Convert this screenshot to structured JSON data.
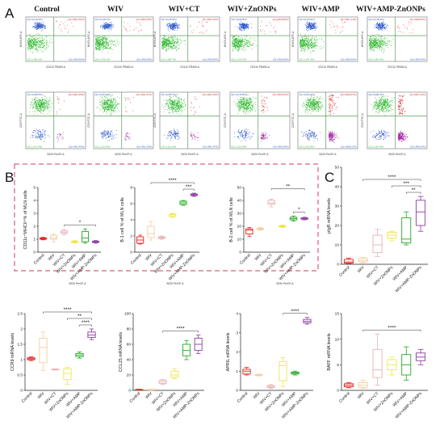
{
  "panels": {
    "A": "A",
    "B": "B",
    "C": "C"
  },
  "groups": [
    "Control",
    "WIV",
    "WIV+CT",
    "WIV+ZnONPs",
    "WIV+AMP",
    "WIV+AMP-ZnONPs"
  ],
  "row1_axes": {
    "x": "CD11C PB450-A",
    "y": "MHCII APC-A"
  },
  "row1_quads": [
    [
      "Q1-UL(16.4%)",
      "Q1-UR(1.50%)",
      "Q1-LL(82.1%)",
      "Q1-LR(0.00%)"
    ],
    [
      "Q1-UL(18.7%)",
      "Q1-UR(2.20%)",
      "Q1-LL(79.1%)",
      "Q1-LR(0.00%)"
    ],
    [
      "Q1-UL(15.9%)",
      "Q1-UR(1.42%)",
      "Q1-LL(82.7%)",
      "Q1-LR(0.00%)"
    ],
    [
      "Q1-UL(22.8%)",
      "Q1-UR(0.86%)",
      "Q1-LL(76.3%)",
      "Q1-LR(0.00%)"
    ],
    [
      "Q1-UL(19.6%)",
      "Q1-UR(1.14%)",
      "Q1-LL(79.3%)",
      "Q1-LR(0.00%)"
    ],
    [
      "Q1-UL(18.2%)",
      "Q1-UR(0.81%)",
      "Q1-LL(81.0%)",
      "Q1-LR(0.00%)"
    ]
  ],
  "row2_axes": {
    "x": "B220 PerCP-A",
    "y": "CD5 FITC-A"
  },
  "row2_quads": [
    [
      "Q1-UL(86.5%)",
      "Q1-UR(1.05%)",
      "Q1-LL(11.0%)",
      "Q1-LR(1.45%)"
    ],
    [
      "Q1-UL(84.1%)",
      "Q1-UR(1.97%)",
      "Q1-LL(12.6%)",
      "Q1-LR(1.33%)"
    ],
    [
      "Q1-UL(85.7%)",
      "Q1-UR(1.63%)",
      "Q1-LL(11.2%)",
      "Q1-LR(1.47%)"
    ],
    [
      "Q1-UL(76.8%)",
      "Q1-UR(4.52%)",
      "Q1-LL(13.6%)",
      "Q1-LR(5.08%)"
    ],
    [
      "Q1-UL(63.2%)",
      "Q1-UR(6.07%)",
      "Q1-LL(10.5%)",
      "Q1-LR(20.2%)"
    ],
    [
      "Q1-UL(62.1%)",
      "Q1-UR(7.11%)",
      "Q1-LL(10.9%)",
      "Q1-LR(19.9%)"
    ]
  ],
  "chart_data": [
    {
      "id": "b1",
      "type": "box",
      "ylabel": "CD11c⁺MHCII⁺% of MLN cells",
      "xlabel": "B220 PerCP-A",
      "ylim": [
        0,
        5
      ],
      "yticks": [
        0,
        1,
        2,
        3,
        4,
        5
      ],
      "categories": [
        "Control",
        "WIV",
        "WIV+CT",
        "WIV+ZnONPs",
        "WIV+AMP",
        "WIV+AMP-ZnONPs"
      ],
      "boxes": [
        [
          0.95,
          1.0,
          1.05,
          1.1,
          1.15
        ],
        [
          0.8,
          1.0,
          1.1,
          1.3,
          1.4
        ],
        [
          1.35,
          1.45,
          1.55,
          1.65,
          1.75
        ],
        [
          0.7,
          0.75,
          0.8,
          0.85,
          0.9
        ],
        [
          0.7,
          0.8,
          1.1,
          1.6,
          1.8
        ],
        [
          0.7,
          0.75,
          0.8,
          0.85,
          0.9
        ]
      ],
      "sig": [
        {
          "from": 2,
          "to": 5,
          "label": "*"
        }
      ]
    },
    {
      "id": "b2",
      "type": "box",
      "ylabel": "B-1 cell % of MLN cells",
      "xlabel": "B220 PerCP-A",
      "ylim": [
        0,
        8
      ],
      "yticks": [
        0,
        2,
        4,
        6,
        8
      ],
      "categories": [
        "Control",
        "WIV",
        "WIV+CT",
        "WIV+ZnONPs",
        "WIV+AMP",
        "WIV+AMP-ZnONPs"
      ],
      "boxes": [
        [
          1.0,
          1.1,
          1.5,
          1.9,
          2.1
        ],
        [
          1.5,
          1.8,
          2.3,
          3.2,
          3.8
        ],
        [
          1.6,
          1.7,
          1.8,
          1.9,
          2.0
        ],
        [
          4.3,
          4.4,
          4.6,
          4.7,
          4.8
        ],
        [
          5.8,
          5.9,
          6.1,
          6.3,
          6.4
        ],
        [
          6.9,
          7.0,
          7.1,
          7.2,
          7.3
        ]
      ],
      "sig": [
        {
          "from": 4,
          "to": 5,
          "label": "***"
        },
        {
          "from": 1,
          "to": 5,
          "label": "****"
        }
      ]
    },
    {
      "id": "b3",
      "type": "box",
      "ylabel": "B-2 cell % of MLN cells",
      "xlabel": "B220 PerCP-A",
      "ylim": [
        0,
        50
      ],
      "yticks": [
        0,
        10,
        20,
        30,
        40,
        50
      ],
      "categories": [
        "Control",
        "WIV",
        "WIV+CT",
        "WIV+ZnONPs",
        "WIV+AMP",
        "WIV+AMP-ZnONPs"
      ],
      "boxes": [
        [
          12,
          14,
          17,
          18,
          19
        ],
        [
          17,
          17.5,
          18,
          18.5,
          19
        ],
        [
          35,
          37,
          38,
          40,
          41
        ],
        [
          19,
          19.5,
          20,
          20.5,
          21
        ],
        [
          24,
          25,
          26,
          27,
          28
        ],
        [
          25,
          25.5,
          26,
          26.5,
          27
        ]
      ],
      "sig": [
        {
          "from": 4,
          "to": 5,
          "label": "*"
        },
        {
          "from": 2,
          "to": 5,
          "label": "**"
        }
      ]
    },
    {
      "id": "c1",
      "type": "box",
      "ylabel": "pIgR mRNA levels",
      "xlabel": "",
      "ylim": [
        0,
        50
      ],
      "yticks": [
        0,
        10,
        20,
        30,
        40,
        50
      ],
      "categories": [
        "Control",
        "WIV",
        "WIV+CT",
        "WIV+ZnONPs",
        "WIV+AMP",
        "WIV+AMP-ZnONPs"
      ],
      "boxes": [
        [
          0.3,
          0.6,
          1.2,
          2.5,
          3.2
        ],
        [
          0.8,
          1.2,
          2.0,
          3.0,
          3.5
        ],
        [
          4,
          6,
          10,
          15,
          18
        ],
        [
          12,
          13.5,
          15,
          16.5,
          17
        ],
        [
          10,
          11,
          13,
          24,
          27
        ],
        [
          17,
          20,
          27,
          33,
          35
        ]
      ],
      "sig": [
        {
          "from": 4,
          "to": 5,
          "label": "**"
        },
        {
          "from": 3,
          "to": 5,
          "label": "***"
        },
        {
          "from": 1,
          "to": 5,
          "label": "****"
        }
      ]
    },
    {
      "id": "d1",
      "type": "box",
      "ylabel": "CCR9 mRNA levels",
      "xlabel": "",
      "ylim": [
        0,
        2.5
      ],
      "yticks": [
        0.0,
        0.5,
        1.0,
        1.5,
        2.0,
        2.5
      ],
      "categories": [
        "Control",
        "WIV",
        "WIV+CT",
        "WIV+ZnONPs",
        "WIV+AMP",
        "WIV+AMP-ZnONPs"
      ],
      "boxes": [
        [
          0.97,
          1.0,
          1.03,
          1.06,
          1.09
        ],
        [
          0.65,
          0.9,
          1.4,
          1.7,
          1.9
        ],
        [
          0.66,
          0.67,
          0.68,
          0.69,
          0.7
        ],
        [
          0.2,
          0.35,
          0.55,
          0.7,
          0.75
        ],
        [
          1.05,
          1.1,
          1.15,
          1.2,
          1.25
        ],
        [
          1.65,
          1.72,
          1.8,
          1.9,
          2.0
        ]
      ],
      "sig": [
        {
          "from": 4,
          "to": 5,
          "label": "****"
        },
        {
          "from": 3,
          "to": 5,
          "label": "**"
        },
        {
          "from": 1,
          "to": 5,
          "label": "****"
        }
      ]
    },
    {
      "id": "d2",
      "type": "box",
      "ylabel": "CCL25 mRNA levels",
      "xlabel": "",
      "ylim": [
        0,
        100
      ],
      "yticks": [
        0,
        20,
        40,
        60,
        80,
        100
      ],
      "categories": [
        "Control",
        "WIV",
        "WIV+CT",
        "WIV+ZnONPs",
        "WIV+AMP",
        "WIV+AMP-ZnONPs"
      ],
      "boxes": [
        [
          0.5,
          0.7,
          1.0,
          1.2,
          1.5
        ],
        [
          0.2,
          0.5,
          1.0,
          1.3,
          1.6
        ],
        [
          8,
          9,
          11,
          13,
          14
        ],
        [
          15,
          17,
          20,
          25,
          28
        ],
        [
          40,
          45,
          52,
          60,
          65
        ],
        [
          48,
          52,
          60,
          68,
          72
        ]
      ],
      "sig": [
        {
          "from": 2,
          "to": 5,
          "label": "****"
        }
      ]
    },
    {
      "id": "d3",
      "type": "box",
      "ylabel": "APRIL mRNA levels",
      "xlabel": "",
      "ylim": [
        0,
        4
      ],
      "yticks": [
        0,
        1,
        2,
        3,
        4
      ],
      "categories": [
        "Control",
        "WIV",
        "WIV+CT",
        "WIV+ZnONPs",
        "WIV+AMP",
        "WIV+AMP-ZnONPs"
      ],
      "boxes": [
        [
          0.8,
          0.85,
          1.0,
          1.1,
          1.2
        ],
        [
          0.75,
          0.78,
          0.8,
          0.82,
          0.85
        ],
        [
          0.1,
          0.15,
          0.2,
          0.25,
          0.3
        ],
        [
          0.2,
          0.5,
          1.3,
          1.5,
          1.7
        ],
        [
          0.8,
          0.85,
          0.9,
          0.95,
          1.0
        ],
        [
          3.45,
          3.52,
          3.6,
          3.7,
          3.8
        ]
      ],
      "sig": [
        {
          "from": 3,
          "to": 5,
          "label": "****"
        }
      ]
    },
    {
      "id": "d4",
      "type": "box",
      "ylabel": "BAFF mRNA levels",
      "xlabel": "",
      "ylim": [
        0,
        15
      ],
      "yticks": [
        0,
        5,
        10,
        15
      ],
      "categories": [
        "Control",
        "WIV",
        "WIV+CT",
        "WIV+ZnONPs",
        "WIV+AMP",
        "WIV+AMP-ZnONPs"
      ],
      "boxes": [
        [
          0.5,
          0.7,
          1.0,
          1.3,
          1.5
        ],
        [
          0.4,
          0.6,
          1.0,
          1.5,
          2.0
        ],
        [
          1,
          2.5,
          4,
          8,
          11
        ],
        [
          3,
          4,
          5,
          6,
          6.5
        ],
        [
          2,
          3,
          5,
          7,
          8.5
        ],
        [
          5,
          5.8,
          6.5,
          7.3,
          8
        ]
      ],
      "sig": [
        {
          "from": 1,
          "to": 5,
          "label": "****"
        }
      ]
    }
  ],
  "colors": {
    "control": "#e2231a",
    "wiv": "#f2cfa1",
    "ct": "#e6b3b3",
    "znonps": "#f0e54b",
    "amp": "#22aa22",
    "ampzn": "#8c3ca0",
    "dash": "#d63a5a",
    "flow_green": "#2fb82f",
    "flow_blue": "#2a55c9",
    "flow_red": "#e0242a",
    "flow_purple": "#a020a0",
    "gate": "#3a8a3a"
  }
}
